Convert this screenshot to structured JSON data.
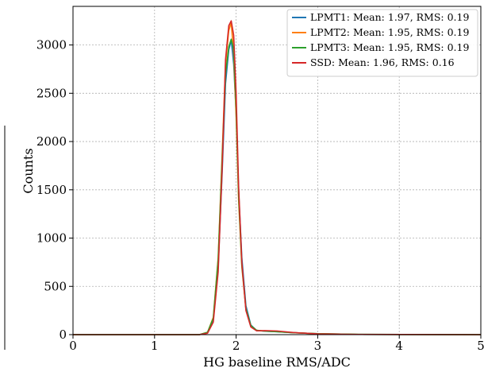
{
  "chart_data": {
    "type": "line",
    "title": "",
    "xlabel": "HG baseline RMS/ADC",
    "ylabel": "Counts",
    "xlim": [
      0,
      5
    ],
    "ylim": [
      0,
      3400
    ],
    "xticks": [
      "0",
      "1",
      "2",
      "3",
      "4",
      "5"
    ],
    "yticks": [
      "0",
      "500",
      "1000",
      "1500",
      "2000",
      "2500",
      "3000"
    ],
    "grid": true,
    "legend_position": "top-right",
    "series": [
      {
        "name": "LPMT1: Mean: 1.97, RMS: 0.19",
        "color": "#1f77b4",
        "x": [
          0,
          1.55,
          1.65,
          1.72,
          1.78,
          1.83,
          1.87,
          1.91,
          1.94,
          1.97,
          2.0,
          2.03,
          2.07,
          2.12,
          2.18,
          2.25,
          2.35,
          2.5,
          2.7,
          3.0,
          3.5,
          5.0
        ],
        "y": [
          0,
          0,
          20,
          150,
          700,
          1700,
          2600,
          2950,
          3050,
          2800,
          2300,
          1500,
          800,
          300,
          100,
          45,
          35,
          30,
          20,
          10,
          3,
          0
        ]
      },
      {
        "name": "LPMT2: Mean: 1.95, RMS: 0.19",
        "color": "#ff7f0e",
        "x": [
          0,
          1.55,
          1.65,
          1.72,
          1.78,
          1.83,
          1.87,
          1.91,
          1.94,
          1.97,
          2.0,
          2.03,
          2.07,
          2.12,
          2.18,
          2.25,
          2.35,
          2.5,
          2.7,
          3.0,
          3.5,
          5.0
        ],
        "y": [
          0,
          0,
          25,
          180,
          800,
          1900,
          2800,
          3150,
          3230,
          2900,
          2250,
          1400,
          700,
          260,
          90,
          45,
          38,
          32,
          20,
          10,
          3,
          0
        ]
      },
      {
        "name": "LPMT3: Mean: 1.95, RMS: 0.19",
        "color": "#2ca02c",
        "x": [
          0,
          1.55,
          1.65,
          1.72,
          1.78,
          1.83,
          1.87,
          1.91,
          1.94,
          1.97,
          2.0,
          2.03,
          2.07,
          2.12,
          2.18,
          2.25,
          2.35,
          2.5,
          2.7,
          3.0,
          3.5,
          5.0
        ],
        "y": [
          0,
          0,
          25,
          170,
          780,
          1850,
          2700,
          2980,
          3060,
          2950,
          2350,
          1450,
          720,
          270,
          95,
          45,
          36,
          30,
          20,
          10,
          3,
          0
        ]
      },
      {
        "name": "SSD: Mean: 1.96, RMS: 0.16",
        "color": "#d62728",
        "x": [
          0,
          1.55,
          1.65,
          1.72,
          1.78,
          1.83,
          1.87,
          1.91,
          1.94,
          1.97,
          2.0,
          2.03,
          2.07,
          2.12,
          2.18,
          2.25,
          2.35,
          2.5,
          2.7,
          3.0,
          3.5,
          5.0
        ],
        "y": [
          0,
          0,
          15,
          130,
          650,
          1750,
          2850,
          3200,
          3250,
          3100,
          2500,
          1550,
          750,
          250,
          80,
          40,
          42,
          38,
          22,
          8,
          2,
          0
        ]
      }
    ]
  }
}
